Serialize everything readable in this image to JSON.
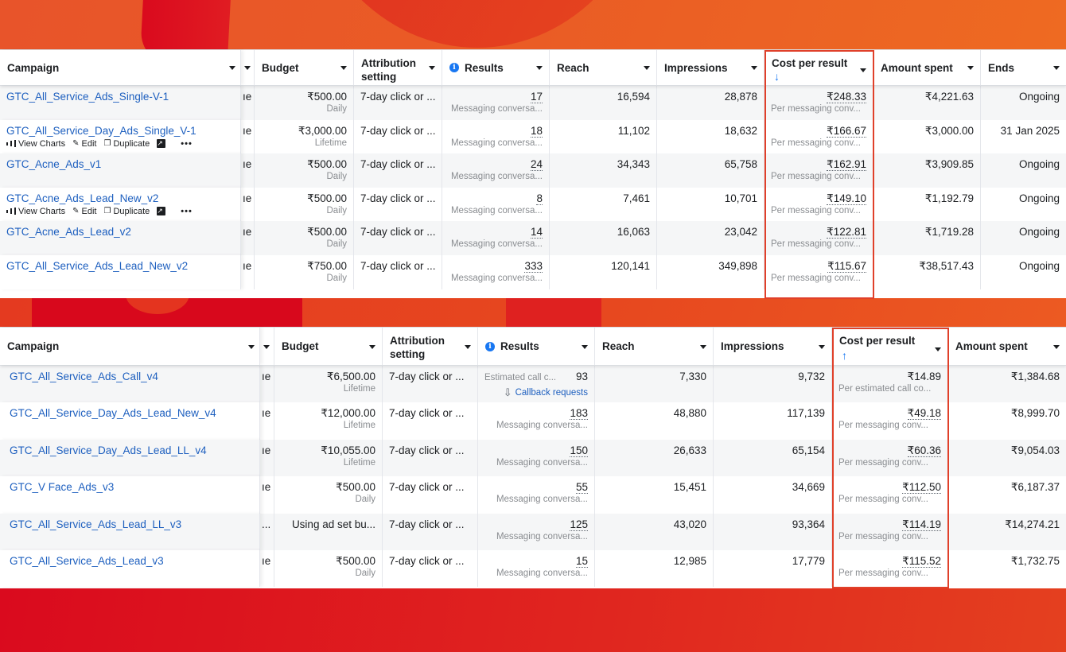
{
  "colors": {
    "highlight_border": "#e0402a",
    "link": "#1d5fbf",
    "sort_arrow": "#1877f2",
    "bg_red": "#da0a1e",
    "bg_orange": "#ec6a22"
  },
  "top_table": {
    "headers": {
      "campaign": "Campaign",
      "budget": "Budget",
      "attribution": "Attribution setting",
      "results": "Results",
      "reach": "Reach",
      "impressions": "Impressions",
      "cost_per_result": "Cost per result",
      "cost_sort_arrow": "↓",
      "amount_spent": "Amount spent",
      "ends": "Ends"
    },
    "row_actions": {
      "view_charts": "View Charts",
      "edit": "Edit",
      "duplicate": "Duplicate",
      "more": "•••"
    },
    "rows": [
      {
        "campaign": "GTC_All_Service_Ads_Single-V-1",
        "delivery": "ıe",
        "budget": "₹500.00",
        "budget_type": "Daily",
        "attribution": "7-day click or ...",
        "results": "17",
        "results_type": "Messaging conversa...",
        "reach": "16,594",
        "impressions": "28,878",
        "cost_per_result": "₹248.33",
        "cost_type": "Per messaging conv...",
        "amount_spent": "₹4,221.63",
        "ends": "Ongoing",
        "show_actions": false
      },
      {
        "campaign": "GTC_All_Service_Day_Ads_Single_V-1",
        "delivery": "ıe",
        "budget": "₹3,000.00",
        "budget_type": "Lifetime",
        "attribution": "7-day click or ...",
        "results": "18",
        "results_type": "Messaging conversa...",
        "reach": "11,102",
        "impressions": "18,632",
        "cost_per_result": "₹166.67",
        "cost_type": "Per messaging conv...",
        "amount_spent": "₹3,000.00",
        "ends": "31 Jan 2025",
        "show_actions": true
      },
      {
        "campaign": "GTC_Acne_Ads_v1",
        "delivery": "ıe",
        "budget": "₹500.00",
        "budget_type": "Daily",
        "attribution": "7-day click or ...",
        "results": "24",
        "results_type": "Messaging conversa...",
        "reach": "34,343",
        "impressions": "65,758",
        "cost_per_result": "₹162.91",
        "cost_type": "Per messaging conv...",
        "amount_spent": "₹3,909.85",
        "ends": "Ongoing",
        "show_actions": false
      },
      {
        "campaign": "GTC_Acne_Ads_Lead_New_v2",
        "delivery": "ıe",
        "budget": "₹500.00",
        "budget_type": "Daily",
        "attribution": "7-day click or ...",
        "results": "8",
        "results_type": "Messaging conversa...",
        "reach": "7,461",
        "impressions": "10,701",
        "cost_per_result": "₹149.10",
        "cost_type": "Per messaging conv...",
        "amount_spent": "₹1,192.79",
        "ends": "Ongoing",
        "show_actions": true
      },
      {
        "campaign": "GTC_Acne_Ads_Lead_v2",
        "delivery": "ıe",
        "budget": "₹500.00",
        "budget_type": "Daily",
        "attribution": "7-day click or ...",
        "results": "14",
        "results_type": "Messaging conversa...",
        "reach": "16,063",
        "impressions": "23,042",
        "cost_per_result": "₹122.81",
        "cost_type": "Per messaging conv...",
        "amount_spent": "₹1,719.28",
        "ends": "Ongoing",
        "show_actions": false
      },
      {
        "campaign": "GTC_All_Service_Ads_Lead_New_v2",
        "delivery": "ıe",
        "budget": "₹750.00",
        "budget_type": "Daily",
        "attribution": "7-day click or ...",
        "results": "333",
        "results_type": "Messaging conversa...",
        "reach": "120,141",
        "impressions": "349,898",
        "cost_per_result": "₹115.67",
        "cost_type": "Per messaging conv...",
        "amount_spent": "₹38,517.43",
        "ends": "Ongoing",
        "show_actions": false
      }
    ]
  },
  "bottom_table": {
    "headers": {
      "campaign": "Campaign",
      "budget": "Budget",
      "attribution": "Attribution setting",
      "results": "Results",
      "reach": "Reach",
      "impressions": "Impressions",
      "cost_per_result": "Cost per result",
      "cost_sort_arrow": "↑",
      "amount_spent": "Amount spent"
    },
    "rows": [
      {
        "campaign": "GTC_All_Service_Ads_Call_v4",
        "delivery": "ıe",
        "budget": "₹6,500.00",
        "budget_type": "Lifetime",
        "attribution": "7-day click or ...",
        "results": "93",
        "results_type": "Estimated call c...",
        "results_link": "Callback requests",
        "reach": "7,330",
        "impressions": "9,732",
        "cost_per_result": "₹14.89",
        "cost_type": "Per estimated call co...",
        "amount_spent": "₹1,384.68"
      },
      {
        "campaign": "GTC_All_Service_Day_Ads_Lead_New_v4",
        "delivery": "ıe",
        "budget": "₹12,000.00",
        "budget_type": "Lifetime",
        "attribution": "7-day click or ...",
        "results": "183",
        "results_type": "Messaging conversa...",
        "reach": "48,880",
        "impressions": "117,139",
        "cost_per_result": "₹49.18",
        "cost_type": "Per messaging conv...",
        "amount_spent": "₹8,999.70"
      },
      {
        "campaign": "GTC_All_Service_Day_Ads_Lead_LL_v4",
        "delivery": "ıe",
        "budget": "₹10,055.00",
        "budget_type": "Lifetime",
        "attribution": "7-day click or ...",
        "results": "150",
        "results_type": "Messaging conversa...",
        "reach": "26,633",
        "impressions": "65,154",
        "cost_per_result": "₹60.36",
        "cost_type": "Per messaging conv...",
        "amount_spent": "₹9,054.03"
      },
      {
        "campaign": "GTC_V Face_Ads_v3",
        "delivery": "ıe",
        "budget": "₹500.00",
        "budget_type": "Daily",
        "attribution": "7-day click or ...",
        "results": "55",
        "results_type": "Messaging conversa...",
        "reach": "15,451",
        "impressions": "34,669",
        "cost_per_result": "₹112.50",
        "cost_type": "Per messaging conv...",
        "amount_spent": "₹6,187.37"
      },
      {
        "campaign": "GTC_All_Service_Ads_Lead_LL_v3",
        "delivery": "...",
        "budget": "Using ad set bu...",
        "budget_type": "",
        "attribution": "7-day click or ...",
        "results": "125",
        "results_type": "Messaging conversa...",
        "reach": "43,020",
        "impressions": "93,364",
        "cost_per_result": "₹114.19",
        "cost_type": "Per messaging conv...",
        "amount_spent": "₹14,274.21"
      },
      {
        "campaign": "GTC_All_Service_Ads_Lead_v3",
        "delivery": "ıe",
        "budget": "₹500.00",
        "budget_type": "Daily",
        "attribution": "7-day click or ...",
        "results": "15",
        "results_type": "Messaging conversa...",
        "reach": "12,985",
        "impressions": "17,779",
        "cost_per_result": "₹115.52",
        "cost_type": "Per messaging conv...",
        "amount_spent": "₹1,732.75"
      }
    ]
  }
}
